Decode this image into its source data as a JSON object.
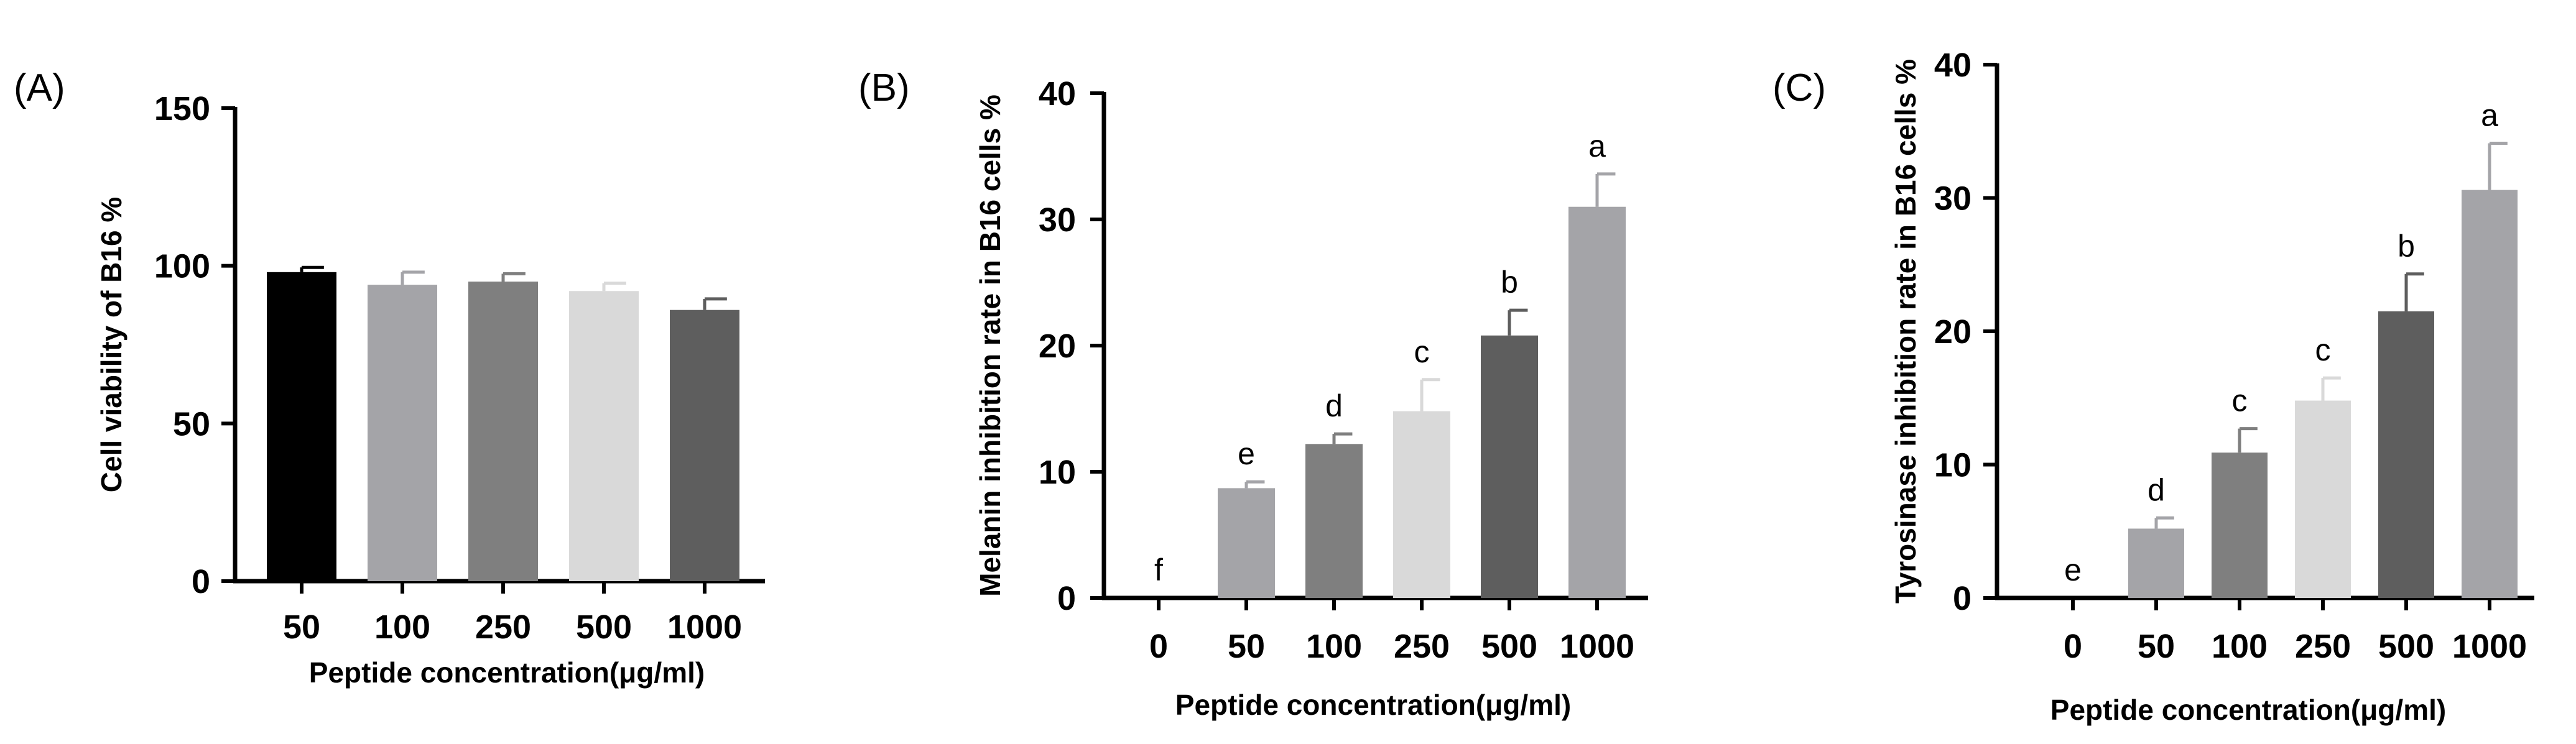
{
  "chart_data": [
    {
      "panel": "(A)",
      "type": "bar",
      "categories": [
        "50",
        "100",
        "250",
        "500",
        "1000"
      ],
      "values": [
        98,
        94,
        95,
        92,
        86
      ],
      "errors": [
        1.5,
        4,
        2.5,
        2.5,
        3.5
      ],
      "colors": [
        "#000000",
        "#a4a4a8",
        "#7f7f7f",
        "#d9d9d9",
        "#5e5e5e"
      ],
      "letters": [],
      "xlabel": "Peptide concentration(μg/ml)",
      "ylabel": "Cell viability of B16 %",
      "ylim": [
        0,
        150
      ],
      "yticks": [
        0,
        50,
        100,
        150
      ]
    },
    {
      "panel": "(B)",
      "type": "bar",
      "categories": [
        "0",
        "50",
        "100",
        "250",
        "500",
        "1000"
      ],
      "values": [
        0,
        8.7,
        12.2,
        14.8,
        20.8,
        31.0
      ],
      "errors": [
        0,
        0.5,
        0.8,
        2.5,
        2.0,
        2.6
      ],
      "colors": [
        "#000000",
        "#a4a4a8",
        "#7f7f7f",
        "#d9d9d9",
        "#5e5e5e",
        "#a4a4a8"
      ],
      "letters": [
        "f",
        "e",
        "d",
        "c",
        "b",
        "a"
      ],
      "xlabel": "Peptide concentration(μg/ml)",
      "ylabel": "Melanin inhibition rate in B16 cells %",
      "ylim": [
        0,
        40
      ],
      "yticks": [
        0,
        10,
        20,
        30,
        40
      ]
    },
    {
      "panel": "(C)",
      "type": "bar",
      "categories": [
        "0",
        "50",
        "100",
        "250",
        "500",
        "1000"
      ],
      "values": [
        0,
        5.2,
        10.9,
        14.8,
        21.5,
        30.6
      ],
      "errors": [
        0,
        0.8,
        1.8,
        1.7,
        2.8,
        3.5
      ],
      "colors": [
        "#000000",
        "#a4a4a8",
        "#7f7f7f",
        "#d9d9d9",
        "#5e5e5e",
        "#a4a4a8"
      ],
      "letters": [
        "e",
        "d",
        "c",
        "c",
        "b",
        "a"
      ],
      "xlabel": "Peptide concentration(μg/ml)",
      "ylabel": "Tyrosinase inhibition rate in B16 cells %",
      "ylim": [
        0,
        40
      ],
      "yticks": [
        0,
        10,
        20,
        30,
        40
      ]
    }
  ]
}
